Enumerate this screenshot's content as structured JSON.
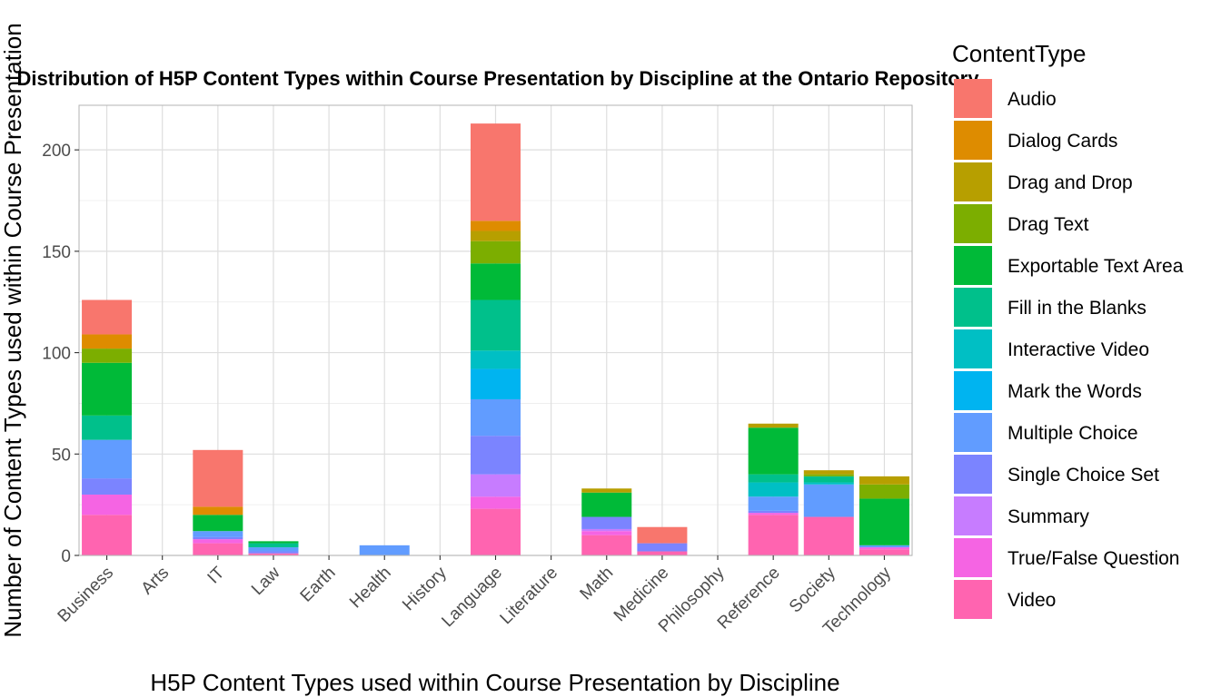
{
  "chart_data": {
    "type": "bar",
    "stacked": true,
    "title": "Distribution of H5P Content Types within Course Presentation by Discipline at the Ontario Repository",
    "xlabel": "H5P Content Types used within Course Presentation by Discipline",
    "ylabel": "Number of Content Types used within Course Presentation",
    "ylim": [
      0,
      222
    ],
    "yticks": [
      0,
      50,
      100,
      150,
      200
    ],
    "grid": true,
    "legend": {
      "title": "ContentType",
      "position": "right"
    },
    "categories": [
      "Business",
      "Arts",
      "IT",
      "Law",
      "Earth",
      "Health",
      "History",
      "Language",
      "Literature",
      "Math",
      "Medicine",
      "Philosophy",
      "Reference",
      "Society",
      "Technology"
    ],
    "series": [
      {
        "name": "Audio",
        "color": "#F8766D",
        "values": [
          17,
          0,
          28,
          0,
          0,
          0,
          0,
          48,
          0,
          0,
          8,
          0,
          0,
          0,
          0
        ]
      },
      {
        "name": "Dialog Cards",
        "color": "#DE8C00",
        "values": [
          7,
          0,
          4,
          0,
          0,
          0,
          0,
          5,
          0,
          0,
          0,
          0,
          0,
          0,
          0
        ]
      },
      {
        "name": "Drag and Drop",
        "color": "#B79F00",
        "values": [
          0,
          0,
          0,
          0,
          0,
          0,
          0,
          5,
          0,
          2,
          0,
          0,
          2,
          2,
          4
        ]
      },
      {
        "name": "Drag Text",
        "color": "#7CAE00",
        "values": [
          7,
          0,
          0,
          0,
          0,
          0,
          0,
          11,
          0,
          0,
          0,
          0,
          0,
          1,
          7
        ]
      },
      {
        "name": "Exportable Text Area",
        "color": "#00BA38",
        "values": [
          26,
          0,
          8,
          1,
          0,
          0,
          0,
          18,
          0,
          12,
          0,
          0,
          23,
          0,
          23
        ]
      },
      {
        "name": "Fill in the Blanks",
        "color": "#00C08B",
        "values": [
          12,
          0,
          0,
          2,
          0,
          0,
          0,
          25,
          0,
          0,
          0,
          0,
          4,
          3,
          0
        ]
      },
      {
        "name": "Interactive Video",
        "color": "#00BFC4",
        "values": [
          0,
          0,
          0,
          0,
          0,
          0,
          0,
          9,
          0,
          0,
          0,
          0,
          7,
          1,
          0
        ]
      },
      {
        "name": "Mark the Words",
        "color": "#00B4F0",
        "values": [
          0,
          0,
          0,
          0,
          0,
          0,
          0,
          15,
          0,
          0,
          0,
          0,
          0,
          0,
          0
        ]
      },
      {
        "name": "Multiple Choice",
        "color": "#619CFF",
        "values": [
          19,
          0,
          3,
          2,
          0,
          5,
          0,
          18,
          0,
          0,
          0,
          0,
          7,
          16,
          1
        ]
      },
      {
        "name": "Single Choice Set",
        "color": "#7B84FF",
        "values": [
          8,
          0,
          1,
          1,
          0,
          0,
          0,
          19,
          0,
          6,
          4,
          0,
          1,
          0,
          0
        ]
      },
      {
        "name": "Summary",
        "color": "#C77CFF",
        "values": [
          0,
          0,
          0,
          0,
          0,
          0,
          0,
          11,
          0,
          1,
          0,
          0,
          0,
          0,
          0
        ]
      },
      {
        "name": "True/False Question",
        "color": "#F564E3",
        "values": [
          10,
          0,
          2,
          0,
          0,
          0,
          0,
          6,
          0,
          2,
          0,
          0,
          1,
          0,
          1
        ]
      },
      {
        "name": "Video",
        "color": "#FF64B0",
        "values": [
          20,
          0,
          6,
          1,
          0,
          0,
          0,
          23,
          0,
          10,
          2,
          0,
          20,
          19,
          3
        ]
      }
    ]
  }
}
